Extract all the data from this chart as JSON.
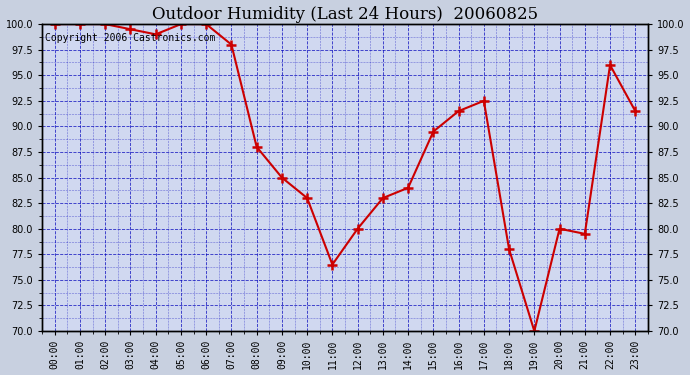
{
  "title": "Outdoor Humidity (Last 24 Hours)  20060825",
  "copyright": "Copyright 2006 Castronics.com",
  "x_labels": [
    "00:00",
    "01:00",
    "02:00",
    "03:00",
    "04:00",
    "05:00",
    "06:00",
    "07:00",
    "08:00",
    "09:00",
    "10:00",
    "11:00",
    "12:00",
    "13:00",
    "14:00",
    "15:00",
    "16:00",
    "17:00",
    "18:00",
    "19:00",
    "20:00",
    "21:00",
    "22:00",
    "23:00"
  ],
  "hours": [
    0,
    1,
    2,
    3,
    4,
    5,
    6,
    7,
    8,
    9,
    10,
    11,
    12,
    13,
    14,
    15,
    16,
    17,
    18,
    19,
    20,
    21,
    22,
    23
  ],
  "humidity": [
    100.0,
    100.0,
    100.0,
    99.5,
    99.0,
    100.0,
    100.0,
    98.0,
    88.0,
    85.0,
    83.0,
    76.5,
    80.0,
    83.0,
    84.0,
    89.5,
    91.5,
    92.5,
    78.0,
    70.0,
    80.0,
    79.5,
    96.0,
    91.5
  ],
  "ylim": [
    70.0,
    100.0
  ],
  "yticks": [
    70.0,
    72.5,
    75.0,
    77.5,
    80.0,
    82.5,
    85.0,
    87.5,
    90.0,
    92.5,
    95.0,
    97.5,
    100.0
  ],
  "line_color": "#cc0000",
  "marker_color": "#cc0000",
  "fig_bg_color": "#c8d0e0",
  "plot_bg_color": "#d0d8f0",
  "grid_color": "#0000bb",
  "title_fontsize": 12,
  "copyright_fontsize": 7
}
